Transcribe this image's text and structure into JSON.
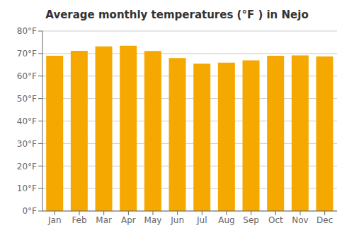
{
  "chart_data": {
    "type": "bar",
    "title": "Average monthly temperatures (°F ) in Nejo",
    "categories": [
      "Jan",
      "Feb",
      "Mar",
      "Apr",
      "May",
      "Jun",
      "Jul",
      "Aug",
      "Sep",
      "Oct",
      "Nov",
      "Dec"
    ],
    "values": [
      69.0,
      71.2,
      73.2,
      73.5,
      71.1,
      68.0,
      65.5,
      66.0,
      67.0,
      69.0,
      69.2,
      68.7
    ],
    "color": "#F5A800",
    "ylim": [
      0,
      80
    ],
    "yticks": [
      {
        "value": 0,
        "label": "0°F"
      },
      {
        "value": 10,
        "label": "10°F"
      },
      {
        "value": 20,
        "label": "20°F"
      },
      {
        "value": 30,
        "label": "30°F"
      },
      {
        "value": 40,
        "label": "40°F"
      },
      {
        "value": 50,
        "label": "50°F"
      },
      {
        "value": 60,
        "label": "60°F"
      },
      {
        "value": 70,
        "label": "70°F"
      },
      {
        "value": 80,
        "label": "80°F"
      }
    ],
    "grid": true
  }
}
